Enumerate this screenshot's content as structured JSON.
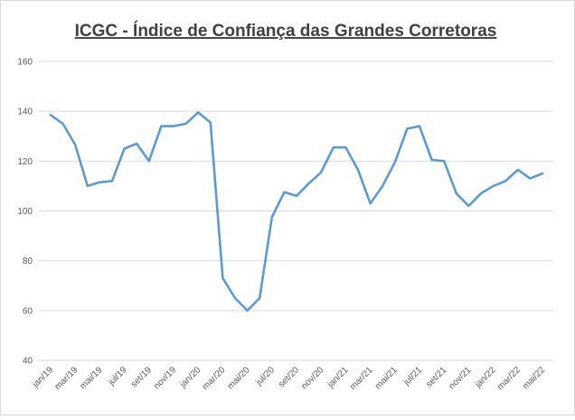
{
  "chart_data": {
    "type": "line",
    "title": "ICGC - Índice de Confiança das Grandes Corretoras",
    "categories": [
      "jan/19",
      null,
      "mar/19",
      null,
      "mai/19",
      null,
      "jul/19",
      null,
      "set/19",
      null,
      "nov/19",
      null,
      "jan/20",
      null,
      "mar/20",
      null,
      "mai/20",
      null,
      "jul/20",
      null,
      "set/20",
      null,
      "nov/20",
      null,
      "jan/21",
      null,
      "mar/21",
      null,
      "mai/21",
      null,
      "jul/21",
      null,
      "set/21",
      null,
      "nov/21",
      null,
      "jan/22",
      null,
      "mar/22",
      null,
      "mai/22"
    ],
    "series": [
      {
        "name": "ICGC",
        "color": "#5b9bd5",
        "values": [
          138.5,
          135,
          126.5,
          110,
          111.5,
          112,
          125,
          127,
          120,
          134,
          134,
          135,
          139.5,
          135.5,
          73,
          65,
          60,
          65,
          97.5,
          107.5,
          106,
          111,
          115.5,
          125.5,
          125.5,
          116.5,
          103,
          110,
          119.5,
          133,
          134,
          120.5,
          120,
          107,
          102,
          107,
          110,
          112,
          116.5,
          113,
          115
        ]
      }
    ],
    "ylim": [
      40,
      160
    ],
    "yticks": [
      40,
      60,
      80,
      100,
      120,
      140,
      160
    ],
    "grid": true
  }
}
